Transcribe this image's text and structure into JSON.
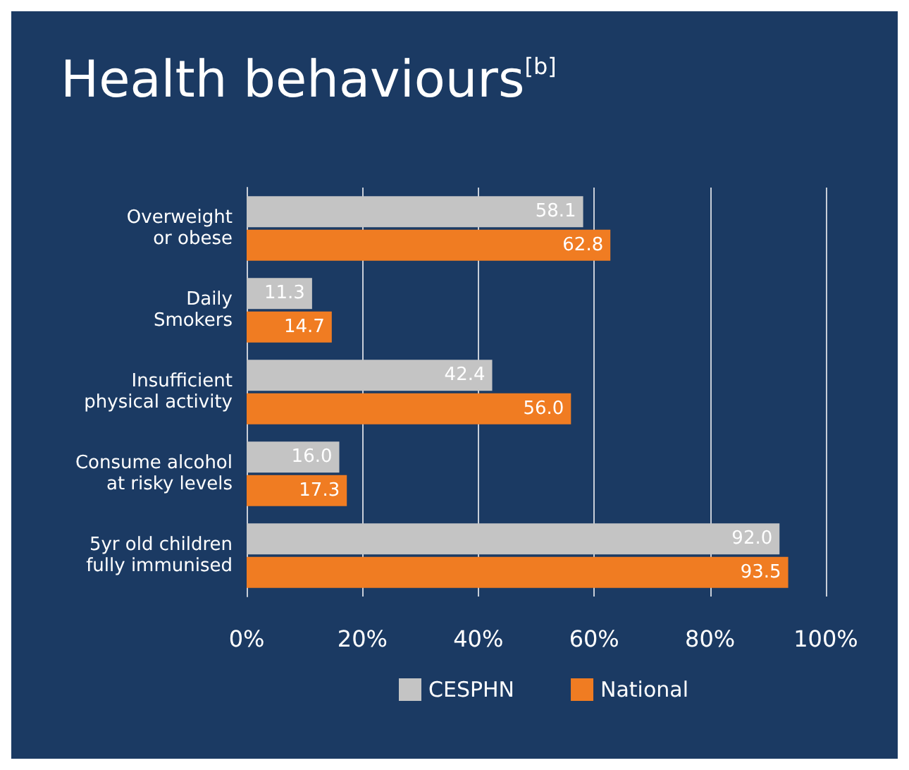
{
  "chart_data": {
    "type": "bar",
    "orientation": "horizontal",
    "title": "Health behaviours$^{[b]}$",
    "categories": [
      "Overweight\nor obese",
      "Daily\nSmokers",
      "Insufficient\nphysical activity",
      "Consume alcohol\nat risky levels",
      "5yr old children\nfully immunised"
    ],
    "series": [
      {
        "name": "CESPHN",
        "color": "#c4c4c4",
        "values": [
          58.1,
          11.3,
          42.4,
          16.0,
          92.0
        ],
        "value_labels": [
          "58.1",
          "11.3",
          "42.4",
          "16.0",
          "92.0"
        ]
      },
      {
        "name": "National",
        "color": "#f07c22",
        "values": [
          62.8,
          14.7,
          56.0,
          17.3,
          93.5
        ],
        "value_labels": [
          "62.8",
          "14.7",
          "56.0",
          "17.3",
          "93.5"
        ]
      }
    ],
    "xlim": [
      0,
      100
    ],
    "xticks": [
      {
        "value": 0,
        "label": "0%"
      },
      {
        "value": 20,
        "label": "20%"
      },
      {
        "value": 40,
        "label": "40%"
      },
      {
        "value": 60,
        "label": "60%"
      },
      {
        "value": 80,
        "label": "80%"
      },
      {
        "value": 100,
        "label": "100%"
      }
    ],
    "grid": "x",
    "legend": "bottom"
  }
}
